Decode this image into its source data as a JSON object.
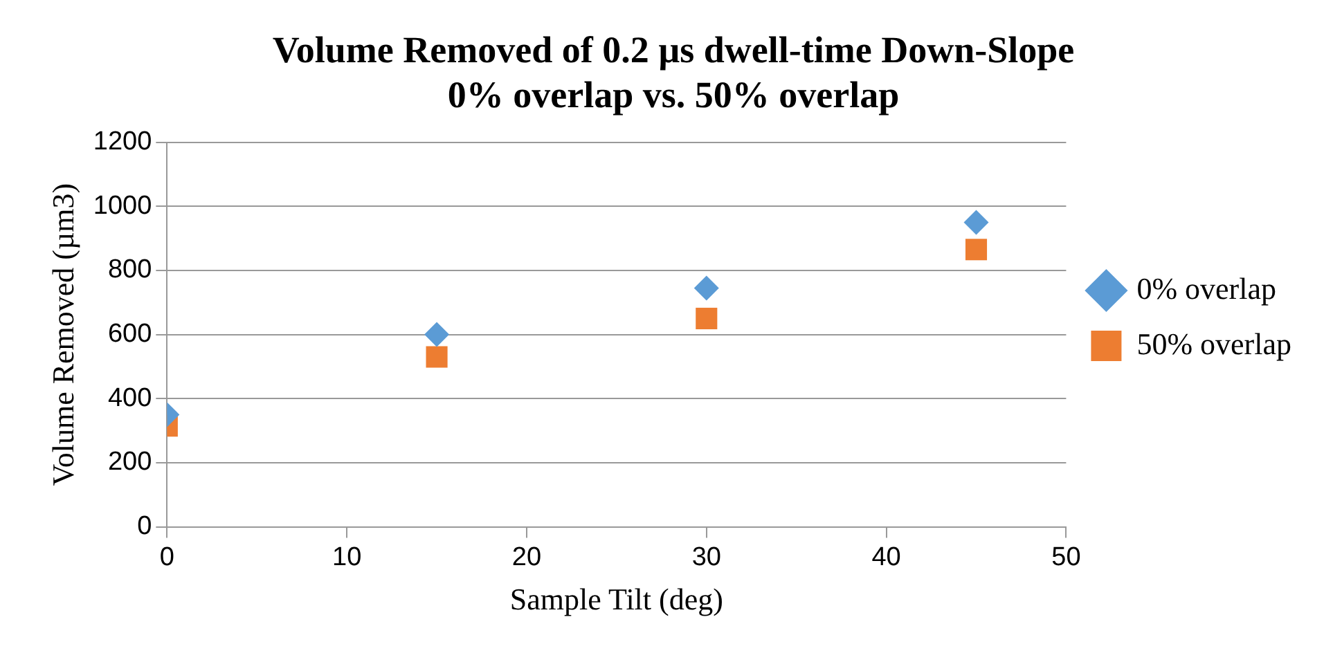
{
  "chart_data": {
    "type": "scatter",
    "title": "Volume Removed of 0.2 µs dwell-time Down-Slope 0% overlap vs. 50% overlap",
    "xlabel": "Sample Tilt (deg)",
    "ylabel": "Volume Removed (µm3)",
    "x": [
      0,
      15,
      30,
      45
    ],
    "series": [
      {
        "name": "0% overlap",
        "color": "#5b9bd5",
        "marker": "diamond",
        "values": [
          350,
          600,
          745,
          950
        ]
      },
      {
        "name": "50% overlap",
        "color": "#ed7d31",
        "marker": "square",
        "values": [
          315,
          530,
          650,
          865
        ]
      }
    ],
    "xlim": [
      0,
      50
    ],
    "xticks": [
      0,
      10,
      20,
      30,
      40,
      50
    ],
    "ylim": [
      0,
      1200
    ],
    "yticks": [
      0,
      200,
      400,
      600,
      800,
      1000,
      1200
    ],
    "grid": "y",
    "legend": "right"
  }
}
